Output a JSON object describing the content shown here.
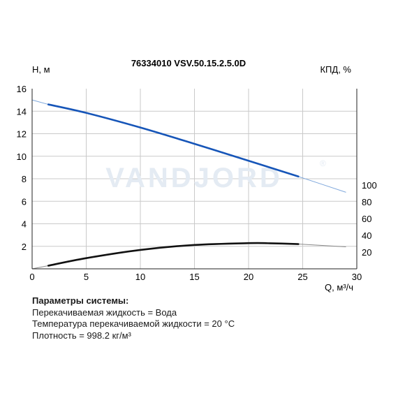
{
  "chart_data": {
    "type": "line",
    "title": "76334010 VSV.50.15.2.5.0D",
    "xlabel": "Q, м³/ч",
    "ylabel_left": "Н, м",
    "ylabel_right": "КПД, %",
    "watermark": "VANDJORD",
    "watermark_mark": "®",
    "xlim": [
      0,
      30
    ],
    "ylim_left": [
      0,
      16
    ],
    "ylim_right_ticks": [
      20,
      40,
      60,
      80,
      100
    ],
    "x_ticks": [
      "0",
      "5",
      "10",
      "15",
      "20",
      "25",
      "30"
    ],
    "y_ticks_left": [
      "2",
      "4",
      "6",
      "8",
      "10",
      "12",
      "14",
      "16"
    ],
    "y_ticks_right": [
      "20",
      "40",
      "60",
      "80",
      "100"
    ],
    "grid": true,
    "series": [
      {
        "id": "head",
        "axis": "left",
        "color": "#1655b8",
        "points": [
          [
            1.5,
            14.6
          ],
          [
            5,
            13.85
          ],
          [
            10,
            12.55
          ],
          [
            15,
            11.1
          ],
          [
            20,
            9.6
          ],
          [
            24.6,
            8.2
          ]
        ],
        "extension": [
          [
            0,
            15.0
          ],
          [
            1.5,
            14.6
          ],
          [
            24.6,
            8.2
          ],
          [
            29,
            6.8
          ]
        ]
      },
      {
        "id": "efficiency",
        "axis": "left",
        "color": "#111111",
        "points": [
          [
            1.5,
            0.28
          ],
          [
            5,
            0.95
          ],
          [
            10,
            1.68
          ],
          [
            15,
            2.12
          ],
          [
            20,
            2.28
          ],
          [
            22,
            2.27
          ],
          [
            24.6,
            2.2
          ]
        ],
        "extension": [
          [
            0,
            0.0
          ],
          [
            1.5,
            0.28
          ],
          [
            24.6,
            2.2
          ],
          [
            29,
            1.95
          ]
        ]
      }
    ]
  },
  "parameters": {
    "heading": "Параметры системы:",
    "lines": [
      "Перекачиваемая жидкость = Вода",
      "Температура перекачиваемой жидкости = 20 °C",
      "Плотность = 998.2 кг/м³"
    ]
  }
}
